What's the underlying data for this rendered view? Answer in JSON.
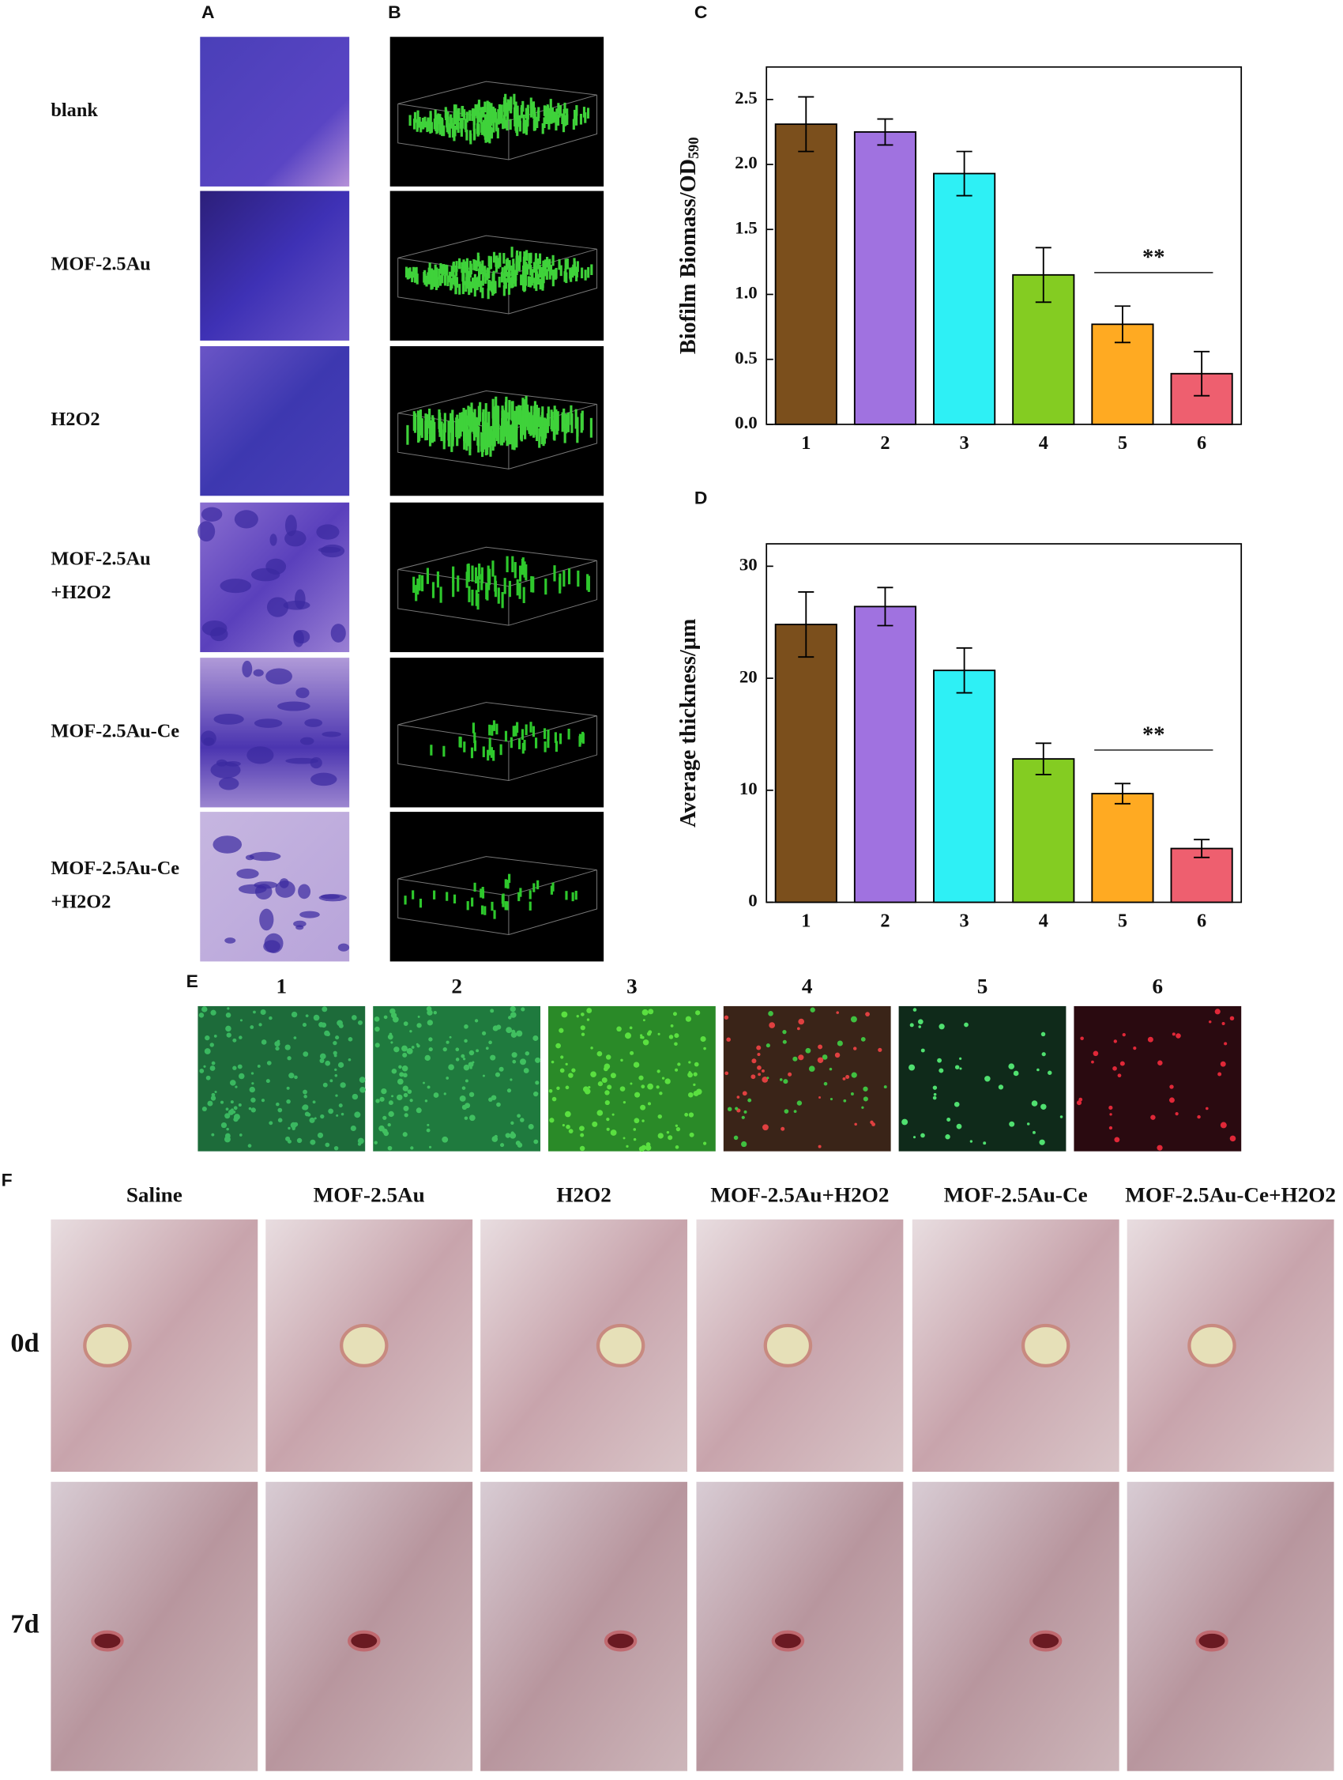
{
  "panel_labels": [
    "A",
    "B",
    "C",
    "D",
    "E",
    "F"
  ],
  "panel_a": {
    "rows": [
      [
        "blank"
      ],
      [
        "MOF-2.5Au"
      ],
      [
        "H2O2"
      ],
      [
        "MOF-2.5Au",
        "+H2O2"
      ],
      [
        "MOF-2.5Au-Ce"
      ],
      [
        "MOF-2.5Au-Ce",
        "+H2O2"
      ]
    ]
  },
  "panel_e": {
    "labels": [
      "1",
      "2",
      "3",
      "4",
      "5",
      "6"
    ]
  },
  "panel_f": {
    "columns": [
      "Saline",
      "MOF-2.5Au",
      "H2O2",
      "MOF-2.5Au+H2O2",
      "MOF-2.5Au-Ce",
      "MOF-2.5Au-Ce+H2O2"
    ],
    "rows": [
      "0d",
      "7d"
    ]
  },
  "chart_data": [
    {
      "type": "bar",
      "ylabel": "Biofilm Biomass/OD",
      "ylabel_subscript": "590",
      "categories": [
        "1",
        "2",
        "3",
        "4",
        "5",
        "6"
      ],
      "values": [
        2.31,
        2.25,
        1.93,
        1.15,
        0.77,
        0.39
      ],
      "errors": [
        0.21,
        0.1,
        0.17,
        0.21,
        0.14,
        0.17
      ],
      "colors": [
        "#7b4f1c",
        "#a072e0",
        "#2ef0f5",
        "#84cc22",
        "#ffaa22",
        "#ee5f6f"
      ],
      "ylim": [
        0,
        2.75
      ],
      "yticks": [
        {
          "value": 0,
          "label": "0.0"
        },
        0.5,
        {
          "value": 1,
          "label": "1.0"
        },
        1.5,
        {
          "value": 2,
          "label": "2.0"
        },
        2.5
      ],
      "annotation": "**"
    },
    {
      "type": "bar",
      "ylabel": "Average thickness/μm",
      "categories": [
        "1",
        "2",
        "3",
        "4",
        "5",
        "6"
      ],
      "values": [
        24.8,
        26.4,
        20.7,
        12.8,
        9.7,
        4.8
      ],
      "errors": [
        2.9,
        1.7,
        2.0,
        1.4,
        0.9,
        0.8
      ],
      "colors": [
        "#7b4f1c",
        "#a072e0",
        "#2ef0f5",
        "#84cc22",
        "#ffaa22",
        "#ee5f6f"
      ],
      "ylim": [
        0,
        32
      ],
      "yticks": [
        0,
        10,
        20,
        30
      ],
      "annotation": "**"
    }
  ]
}
